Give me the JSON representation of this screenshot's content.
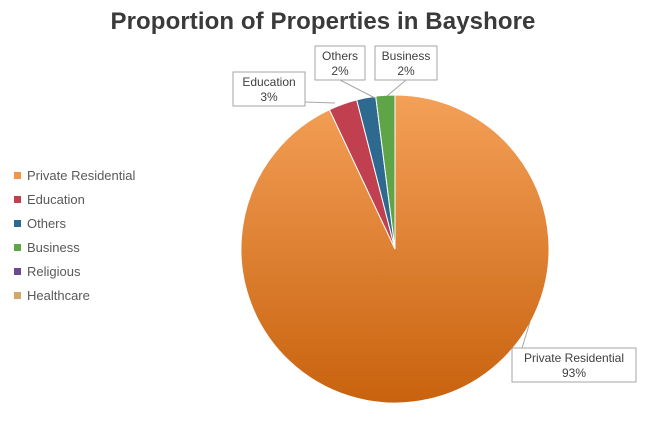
{
  "chart_data": {
    "type": "pie",
    "title": "Proportion of Properties in Bayshore",
    "slices": [
      {
        "label": "Private Residential",
        "value": 93,
        "data_label": "93%",
        "color": "#f0964b"
      },
      {
        "label": "Education",
        "value": 3,
        "data_label": "3%",
        "color": "#c0404f"
      },
      {
        "label": "Others",
        "value": 2,
        "data_label": "2%",
        "color": "#2e6a90"
      },
      {
        "label": "Business",
        "value": 2,
        "data_label": "2%",
        "color": "#5fa548"
      },
      {
        "label": "Religious",
        "value": 0,
        "data_label": "",
        "color": "#6a4b8c"
      },
      {
        "label": "Healthcare",
        "value": 0,
        "data_label": "",
        "color": "#d2a76a"
      }
    ],
    "legend_position": "left"
  }
}
